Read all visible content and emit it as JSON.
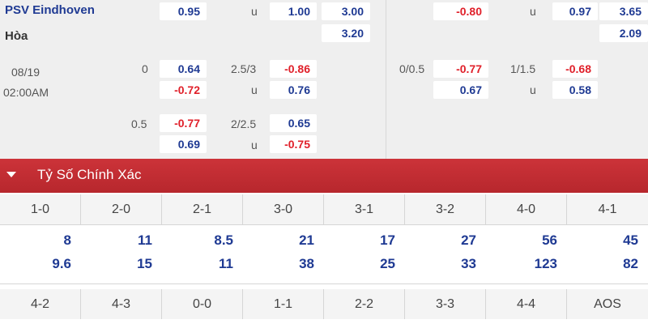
{
  "left_panel": {
    "team": "PSV Eindhoven",
    "draw": "Hòa",
    "date": "08/19",
    "time": "02:00AM",
    "row1": {
      "odd_a": "0.95",
      "ou_label": "u",
      "odd_b": "1.00",
      "odd_c": "3.00"
    },
    "draw_odd": "3.20",
    "line1": {
      "handicap": "0",
      "home": "0.64",
      "away": "-0.72",
      "ou_line": "2.5/3",
      "over": "-0.86",
      "under_label": "u",
      "under": "0.76"
    },
    "line2": {
      "handicap": "0.5",
      "home": "-0.77",
      "away": "0.69",
      "ou_line": "2/2.5",
      "over": "0.65",
      "under_label": "u",
      "under": "-0.75"
    }
  },
  "right_panel": {
    "row1": {
      "odd_a": "-0.80",
      "ou_label": "u",
      "odd_b": "0.97",
      "odd_c": "3.65"
    },
    "draw_odd": "2.09",
    "line1": {
      "handicap": "0/0.5",
      "home": "-0.77",
      "away": "0.67",
      "ou_line": "1/1.5",
      "over": "-0.68",
      "under_label": "u",
      "under": "0.58"
    }
  },
  "section": {
    "title": "Tỷ Số Chính Xác"
  },
  "correct_score": {
    "table1": {
      "scores": [
        "1-0",
        "2-0",
        "2-1",
        "3-0",
        "3-1",
        "3-2",
        "4-0",
        "4-1"
      ],
      "odds_a": [
        "8",
        "11",
        "8.5",
        "21",
        "17",
        "27",
        "56",
        "45"
      ],
      "odds_b": [
        "9.6",
        "15",
        "11",
        "38",
        "25",
        "33",
        "123",
        "82"
      ]
    },
    "table2": {
      "scores": [
        "4-2",
        "4-3",
        "0-0",
        "1-1",
        "2-2",
        "3-3",
        "4-4",
        "AOS"
      ]
    }
  },
  "colors": {
    "header": "#b7272d",
    "positive": "#1f3a93",
    "negative": "#e0202a"
  }
}
